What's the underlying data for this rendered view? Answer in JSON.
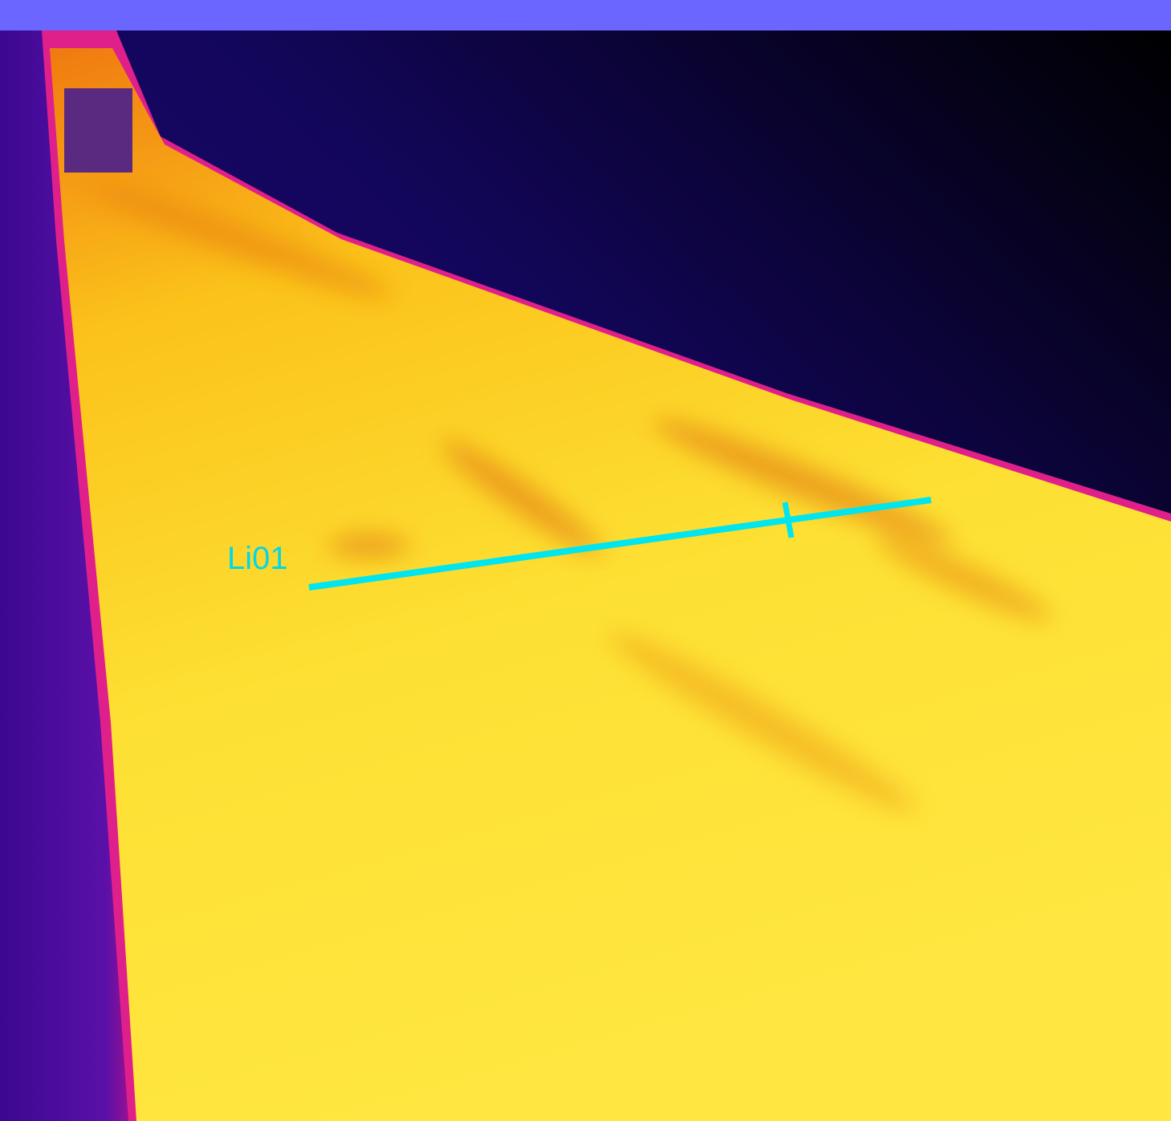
{
  "image": {
    "annotation_label": "Li01"
  }
}
